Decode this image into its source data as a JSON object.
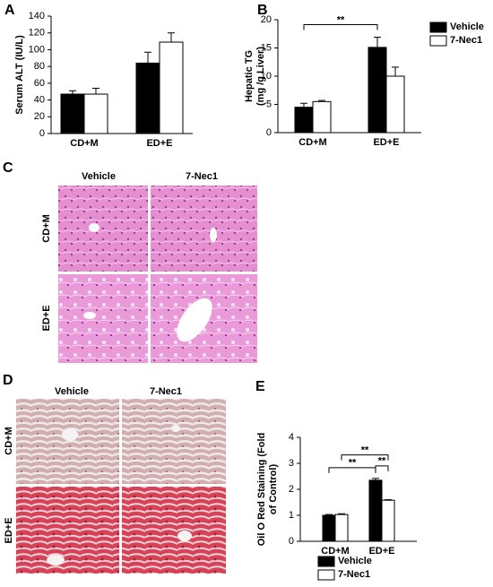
{
  "chart_data": [
    {
      "type": "bar",
      "panel_label": "A",
      "y_label": [
        "Serum ALT (IU/L)"
      ],
      "categories": [
        "CD+M",
        "ED+E"
      ],
      "series": [
        {
          "color": "#000000",
          "values": [
            47,
            84
          ],
          "errors": [
            4,
            13
          ]
        },
        {
          "color": "#ffffff",
          "values": [
            47,
            109
          ],
          "errors": [
            7,
            11
          ]
        }
      ],
      "ylim": [
        0,
        140
      ],
      "yticks": [
        0,
        20,
        40,
        60,
        80,
        100,
        120,
        140
      ],
      "legend": "none",
      "annotations": []
    },
    {
      "type": "bar",
      "panel_label": "B",
      "y_label": [
        "Hepatic TG",
        "(mg /g Liver)"
      ],
      "categories": [
        "CD+M",
        "ED+E"
      ],
      "series": [
        {
          "name": "Vehicle",
          "color": "#000000",
          "values": [
            4.5,
            15.1
          ],
          "errors": [
            0.7,
            1.8
          ]
        },
        {
          "name": "7-Nec1",
          "color": "#ffffff",
          "values": [
            5.5,
            10
          ],
          "errors": [
            0.2,
            1.6
          ]
        }
      ],
      "ylim": [
        0,
        20
      ],
      "yticks": [
        0,
        5,
        10,
        15,
        20
      ],
      "legend": "right",
      "annotations": [
        {
          "text": "**",
          "from": [
            0,
            0
          ],
          "to": [
            1,
            0
          ]
        }
      ]
    },
    {
      "type": "bar",
      "panel_label": "E",
      "y_label": [
        "Oil O Red Staining (Fold",
        "of Control)"
      ],
      "categories": [
        "CD+M",
        "ED+E"
      ],
      "series": [
        {
          "name": "Vehicle",
          "color": "#000000",
          "values": [
            1.0,
            2.35
          ],
          "errors": [
            0.03,
            0.07
          ]
        },
        {
          "name": "7-Nec1",
          "color": "#ffffff",
          "values": [
            1.03,
            1.58
          ],
          "errors": [
            0.03,
            0.02
          ]
        }
      ],
      "ylim": [
        0,
        4
      ],
      "yticks": [
        0,
        1,
        2,
        3,
        4
      ],
      "legend": "bottom",
      "annotations": [
        {
          "text": "**",
          "from": [
            1,
            0
          ],
          "to": [
            1,
            1
          ]
        },
        {
          "text": "**",
          "from": [
            0,
            0
          ],
          "to": [
            1,
            0
          ]
        },
        {
          "text": "**",
          "from": [
            0,
            1
          ],
          "to": [
            1,
            1
          ]
        }
      ]
    }
  ],
  "panels": {
    "C": {
      "label": "C",
      "columns": [
        "Vehicle",
        "7-Nec1"
      ],
      "rows": [
        "CD+M",
        "ED+E"
      ]
    },
    "D": {
      "label": "D",
      "columns": [
        "Vehicle",
        "7-Nec1"
      ],
      "rows": [
        "CD+M",
        "ED+E"
      ]
    }
  }
}
